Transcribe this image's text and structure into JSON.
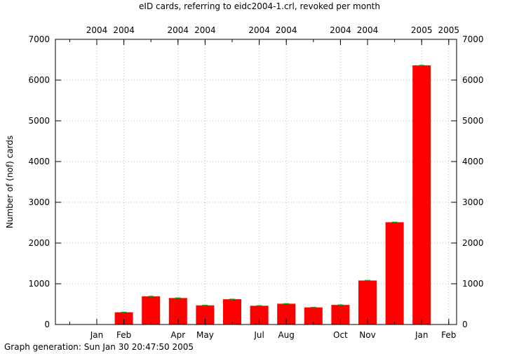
{
  "chart_data": {
    "type": "bar",
    "title": "eID cards, referring to eidc2004-1.crl, revoked per month",
    "ylabel": "Number of (nof) cards",
    "xlabel": "",
    "ylim": [
      0,
      7000
    ],
    "yticks": [
      0,
      1000,
      2000,
      3000,
      4000,
      5000,
      6000,
      7000
    ],
    "grid": true,
    "legend": "none",
    "bar_color": "#ff0000",
    "errorbar_color": "#00aa00",
    "x_tick_labels": [
      {
        "month": "Jan",
        "year": "2004"
      },
      {
        "month": "Feb",
        "year": "2004"
      },
      {
        "month": "Apr",
        "year": "2004"
      },
      {
        "month": "May",
        "year": "2004"
      },
      {
        "month": "Jul",
        "year": "2004"
      },
      {
        "month": "Aug",
        "year": "2004"
      },
      {
        "month": "Oct",
        "year": "2004"
      },
      {
        "month": "Nov",
        "year": "2004"
      },
      {
        "month": "Jan",
        "year": "2005"
      },
      {
        "month": "Feb",
        "year": "2005"
      }
    ],
    "bars": [
      {
        "date": "2004-02",
        "value": 300
      },
      {
        "date": "2004-03",
        "value": 690
      },
      {
        "date": "2004-04",
        "value": 650
      },
      {
        "date": "2004-05",
        "value": 470
      },
      {
        "date": "2004-06",
        "value": 620
      },
      {
        "date": "2004-07",
        "value": 460
      },
      {
        "date": "2004-08",
        "value": 510
      },
      {
        "date": "2004-09",
        "value": 420
      },
      {
        "date": "2004-10",
        "value": 480
      },
      {
        "date": "2004-11",
        "value": 1080
      },
      {
        "date": "2004-12",
        "value": 2510
      },
      {
        "date": "2005-01",
        "value": 6360
      }
    ]
  },
  "footer": {
    "generation_text": "Graph generation: Sun Jan 30 20:47:50 2005"
  }
}
